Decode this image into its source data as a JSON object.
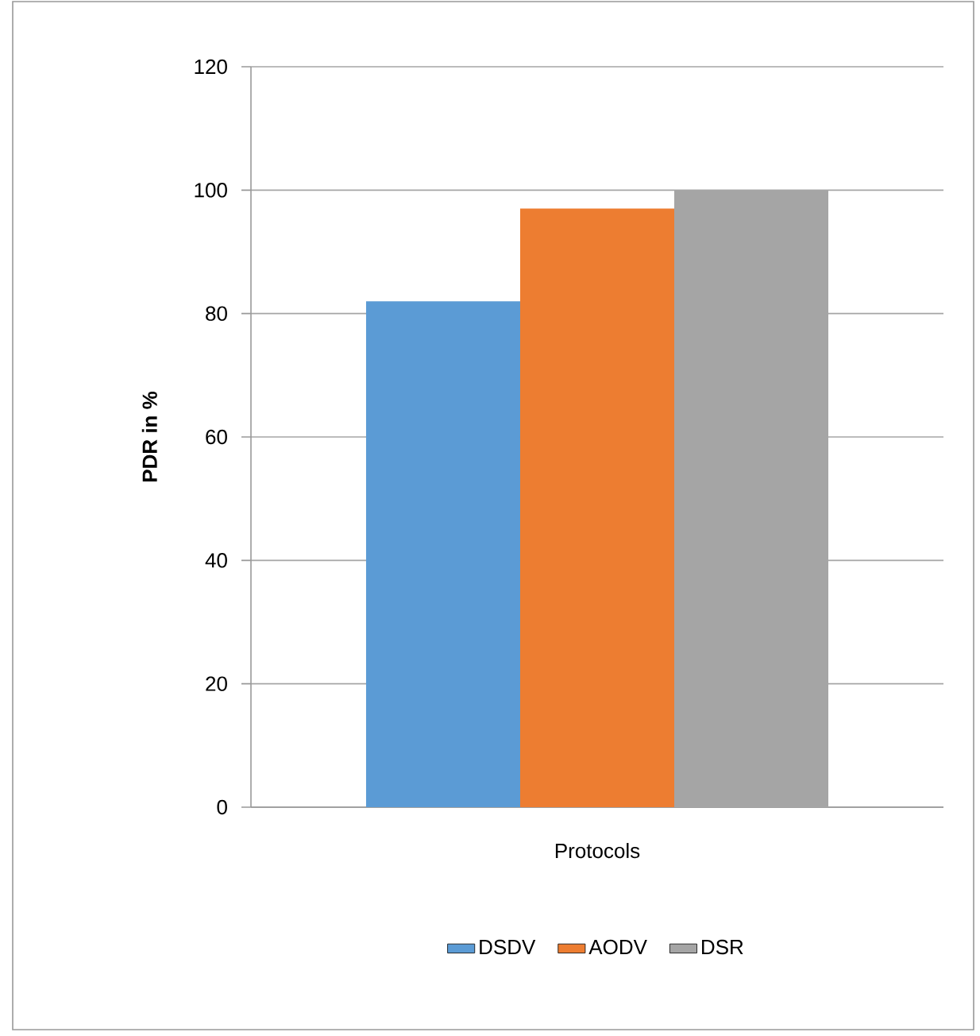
{
  "chart_data": {
    "type": "bar",
    "ylabel": "PDR in %",
    "categories": [
      "Protocols"
    ],
    "series": [
      {
        "name": "DSDV",
        "color": "#5b9bd5",
        "values": [
          82
        ]
      },
      {
        "name": "AODV",
        "color": "#ed7d31",
        "values": [
          97
        ]
      },
      {
        "name": "DSR",
        "color": "#a5a5a5",
        "values": [
          100
        ]
      }
    ],
    "ylim": [
      0,
      120
    ],
    "yticks": [
      0,
      20,
      40,
      60,
      80,
      100,
      120
    ],
    "grid": "y",
    "legend": "bottom"
  }
}
